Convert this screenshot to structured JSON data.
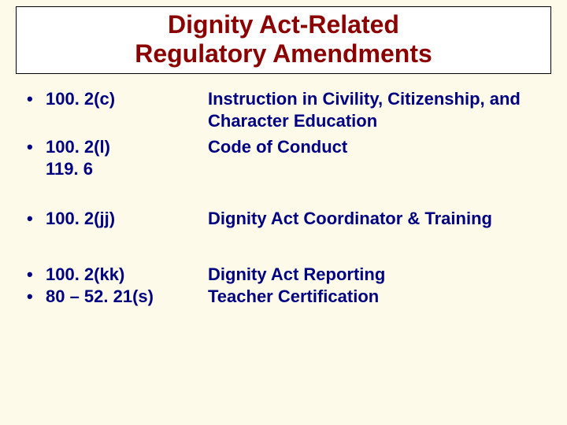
{
  "colors": {
    "background": "#fdfae9",
    "title_color": "#8b0000",
    "text_color": "#000080",
    "title_box_bg": "#ffffff",
    "title_box_border": "#000000"
  },
  "typography": {
    "title_fontsize": 32,
    "body_fontsize": 22,
    "font_family": "Arial"
  },
  "title": {
    "line1": "Dignity Act-Related",
    "line2": "Regulatory Amendments"
  },
  "bullet_char": "•",
  "rows": {
    "r1": {
      "code": "100. 2(c)",
      "desc_l1": "Instruction in Civility, Citizenship, and",
      "desc_l2": "Character Education"
    },
    "r2": {
      "code": "100. 2(l)",
      "code_l2": "119. 6",
      "desc": "Code of Conduct"
    },
    "r3": {
      "code": "100. 2(jj)",
      "desc": "Dignity Act Coordinator & Training"
    },
    "r4": {
      "code": "100. 2(kk)",
      "desc": "Dignity Act Reporting"
    },
    "r5": {
      "code": "80 – 52. 21(s)",
      "desc": "Teacher Certification"
    }
  }
}
